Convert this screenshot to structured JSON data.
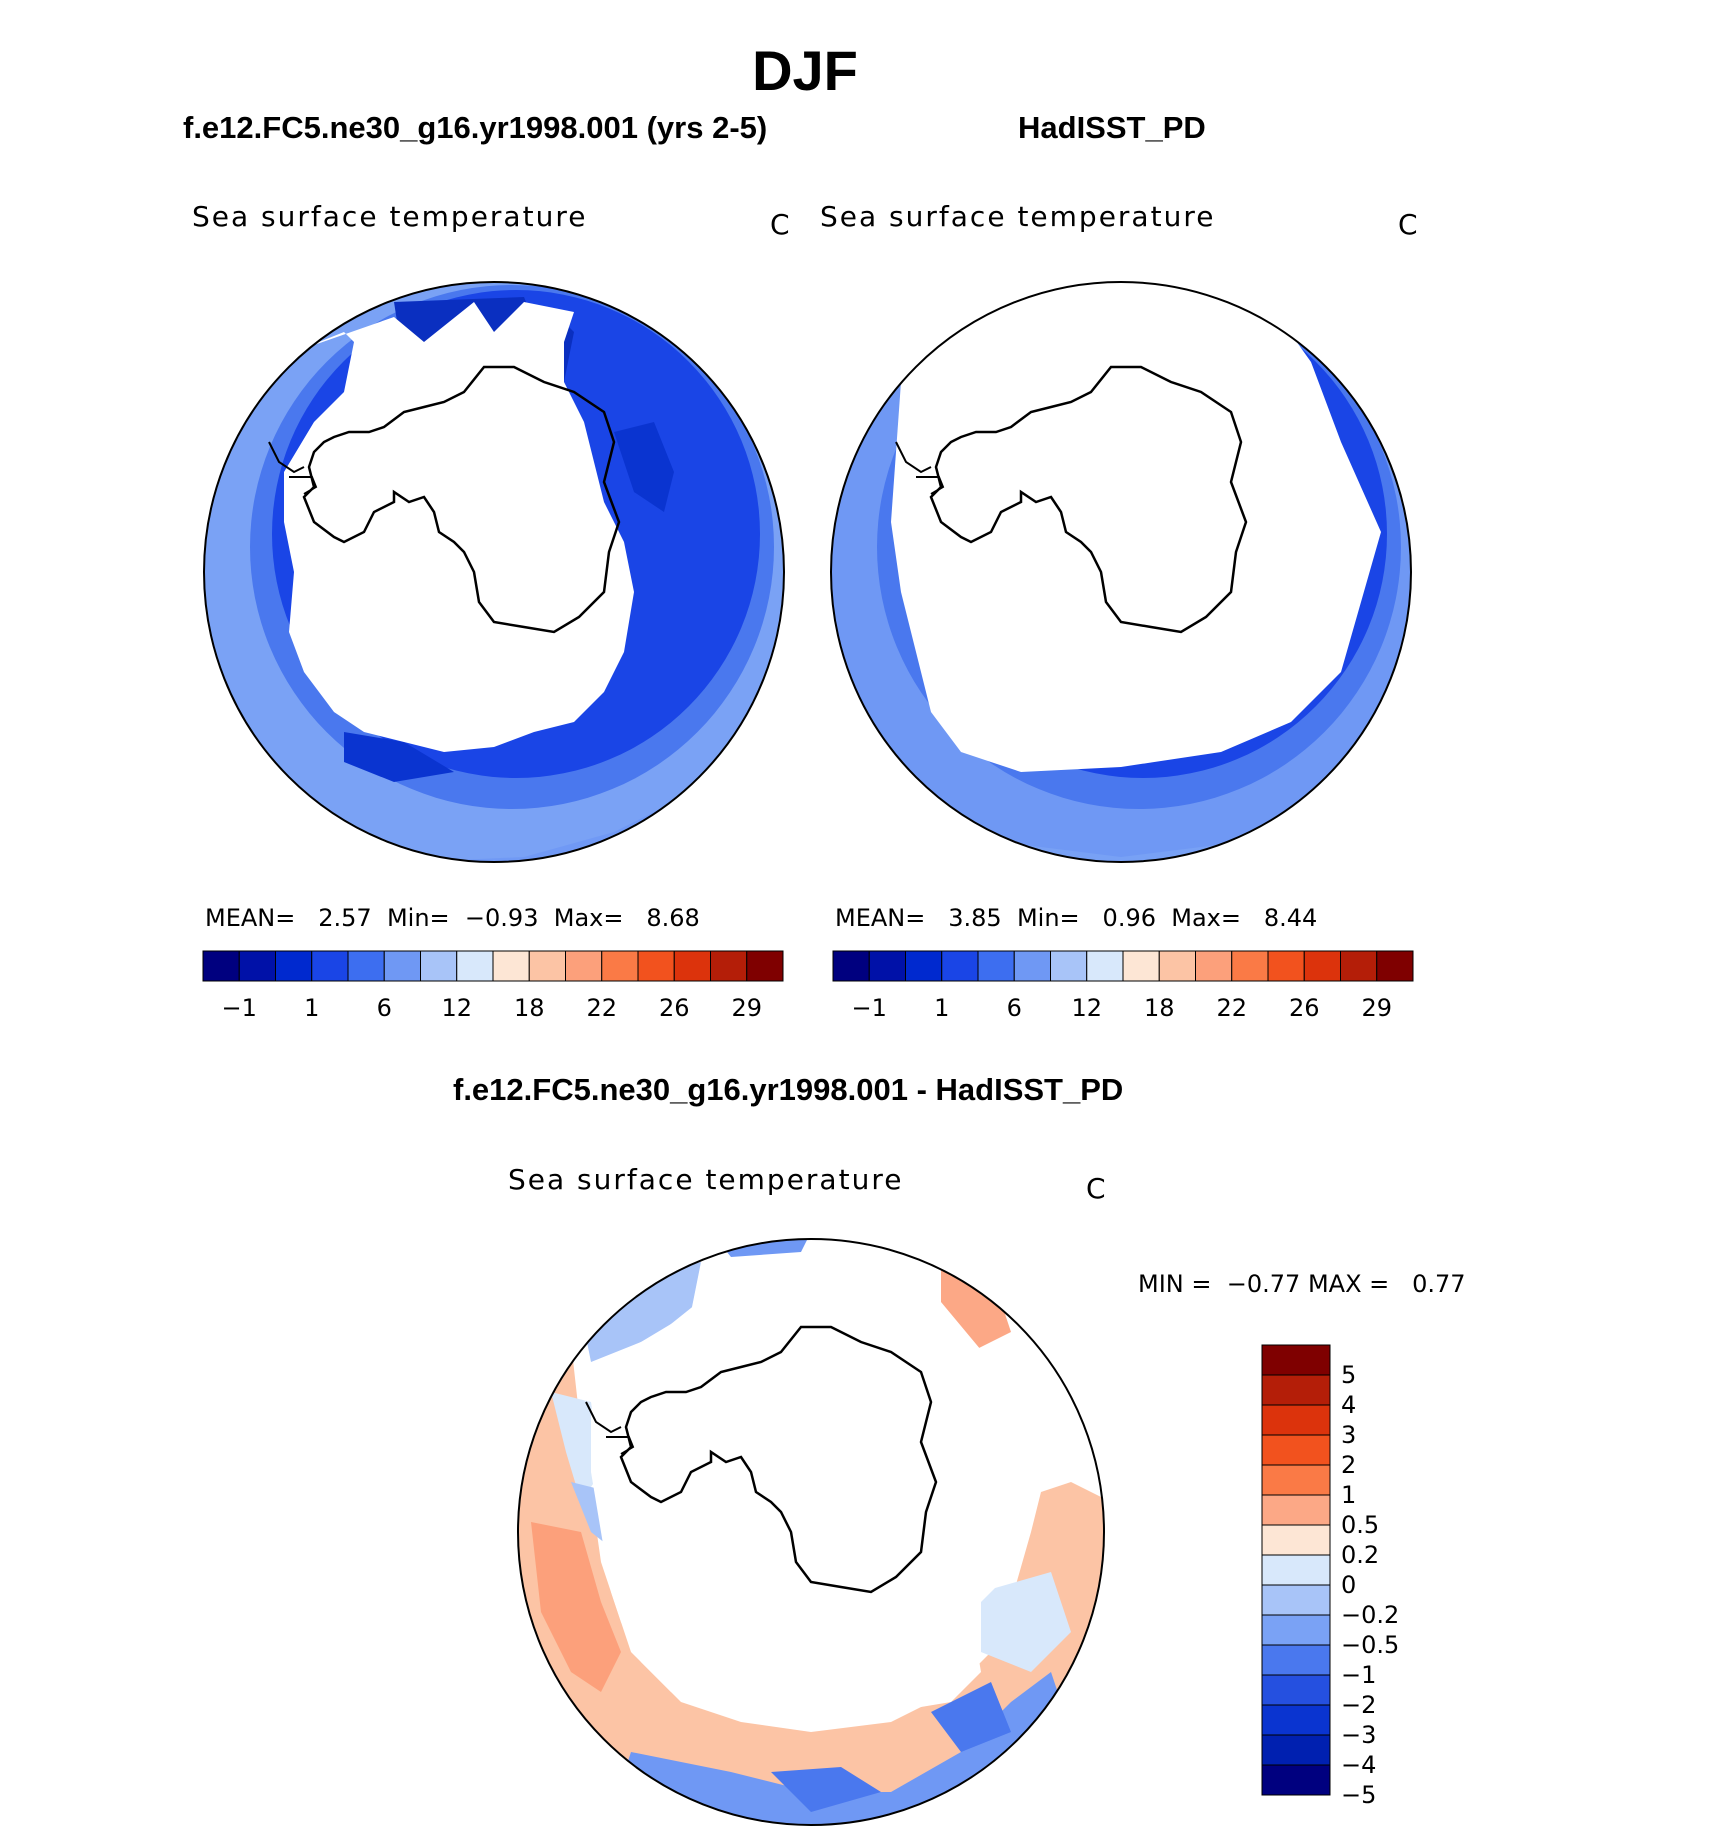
{
  "title": "DJF",
  "panels": [
    {
      "subtitle": "f.e12.FC5.ne30_g16.yr1998.001 (yrs 2-5)",
      "variable": "Sea surface temperature",
      "units": "C",
      "stats": {
        "mean_label": "MEAN=",
        "mean": "2.57",
        "min_label": "Min=",
        "min": "−0.93",
        "max_label": "Max=",
        "max": "8.68"
      }
    },
    {
      "subtitle": "HadISST_PD",
      "variable": "Sea surface temperature",
      "units": "C",
      "stats": {
        "mean_label": "MEAN=",
        "mean": "3.85",
        "min_label": "Min=",
        "min": "0.96",
        "max_label": "Max=",
        "max": "8.44"
      }
    },
    {
      "subtitle": "f.e12.FC5.ne30_g16.yr1998.001 - HadISST_PD",
      "variable": "Sea surface temperature",
      "units": "C",
      "stats": {
        "min_label": "MIN =",
        "min": "−0.77",
        "max_label": "MAX =",
        "max": "0.77"
      }
    }
  ],
  "colorbar_top": {
    "colors": [
      "#00007f",
      "#0011a8",
      "#0029cf",
      "#1a45e6",
      "#3d6ef0",
      "#6f98f4",
      "#a8c4f8",
      "#d8e8fb",
      "#fde6d5",
      "#fcc4a5",
      "#fca07b",
      "#fa7a46",
      "#f2521e",
      "#dc330c",
      "#b41e08",
      "#7f0000"
    ],
    "labels": [
      "−1",
      "1",
      "6",
      "12",
      "18",
      "22",
      "26",
      "29"
    ]
  },
  "colorbar_diff": {
    "colors": [
      "#7f0000",
      "#b41e08",
      "#dc330c",
      "#f2521e",
      "#fa7a46",
      "#fca886",
      "#fde6d5",
      "#d8e8fb",
      "#a8c4f8",
      "#7aa2f5",
      "#4a78ee",
      "#2550e0",
      "#0a34d0",
      "#0020b0",
      "#00007f"
    ],
    "labels": [
      "5",
      "4",
      "3",
      "2",
      "1",
      "0.5",
      "0.2",
      "0",
      "−0.2",
      "−0.5",
      "−1",
      "−2",
      "−3",
      "−4",
      "−5"
    ]
  }
}
